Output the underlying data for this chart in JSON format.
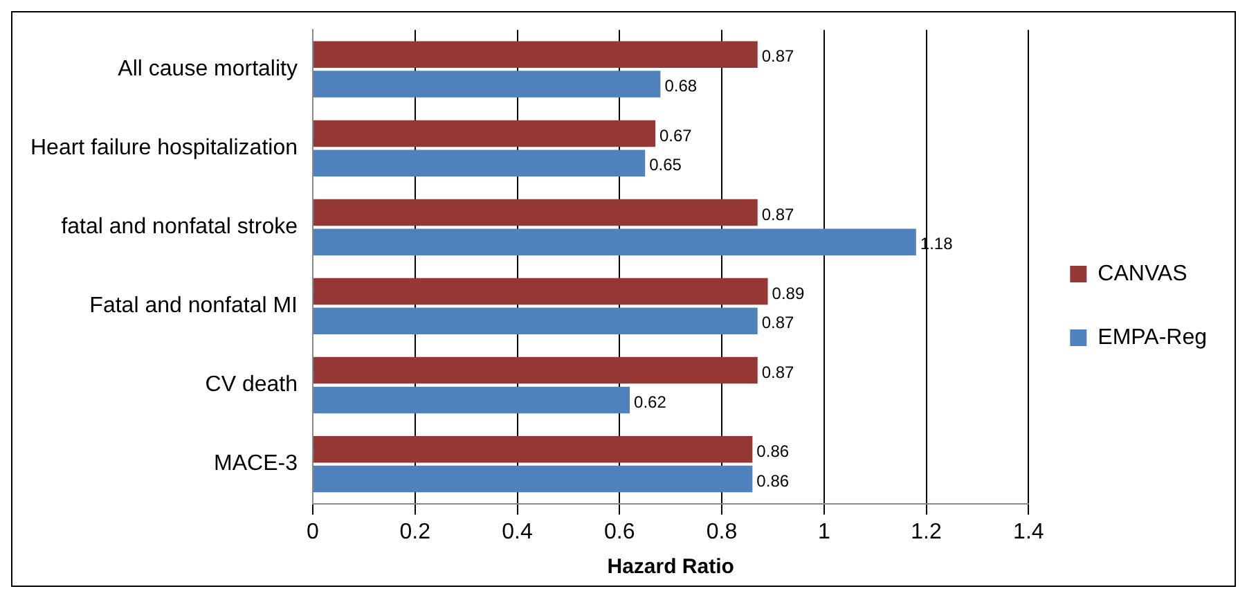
{
  "chart_data": {
    "type": "bar",
    "orientation": "horizontal",
    "xlabel": "Hazard Ratio",
    "categories": [
      "All cause mortality",
      "Heart failure hospitalization",
      "fatal and nonfatal stroke",
      "Fatal and nonfatal MI",
      "CV death",
      "MACE-3"
    ],
    "series": [
      {
        "name": "CANVAS",
        "color": "#953735",
        "values": [
          0.87,
          0.67,
          0.87,
          0.89,
          0.87,
          0.86
        ]
      },
      {
        "name": "EMPA-Reg",
        "color": "#4f81bd",
        "values": [
          0.68,
          0.65,
          1.18,
          0.87,
          0.62,
          0.86
        ]
      }
    ],
    "xlim": [
      0,
      1.4
    ],
    "xticks": [
      0,
      0.2,
      0.4,
      0.6,
      0.8,
      1,
      1.2,
      1.4
    ],
    "grid": "x",
    "legend": "right",
    "data_labels": true
  }
}
